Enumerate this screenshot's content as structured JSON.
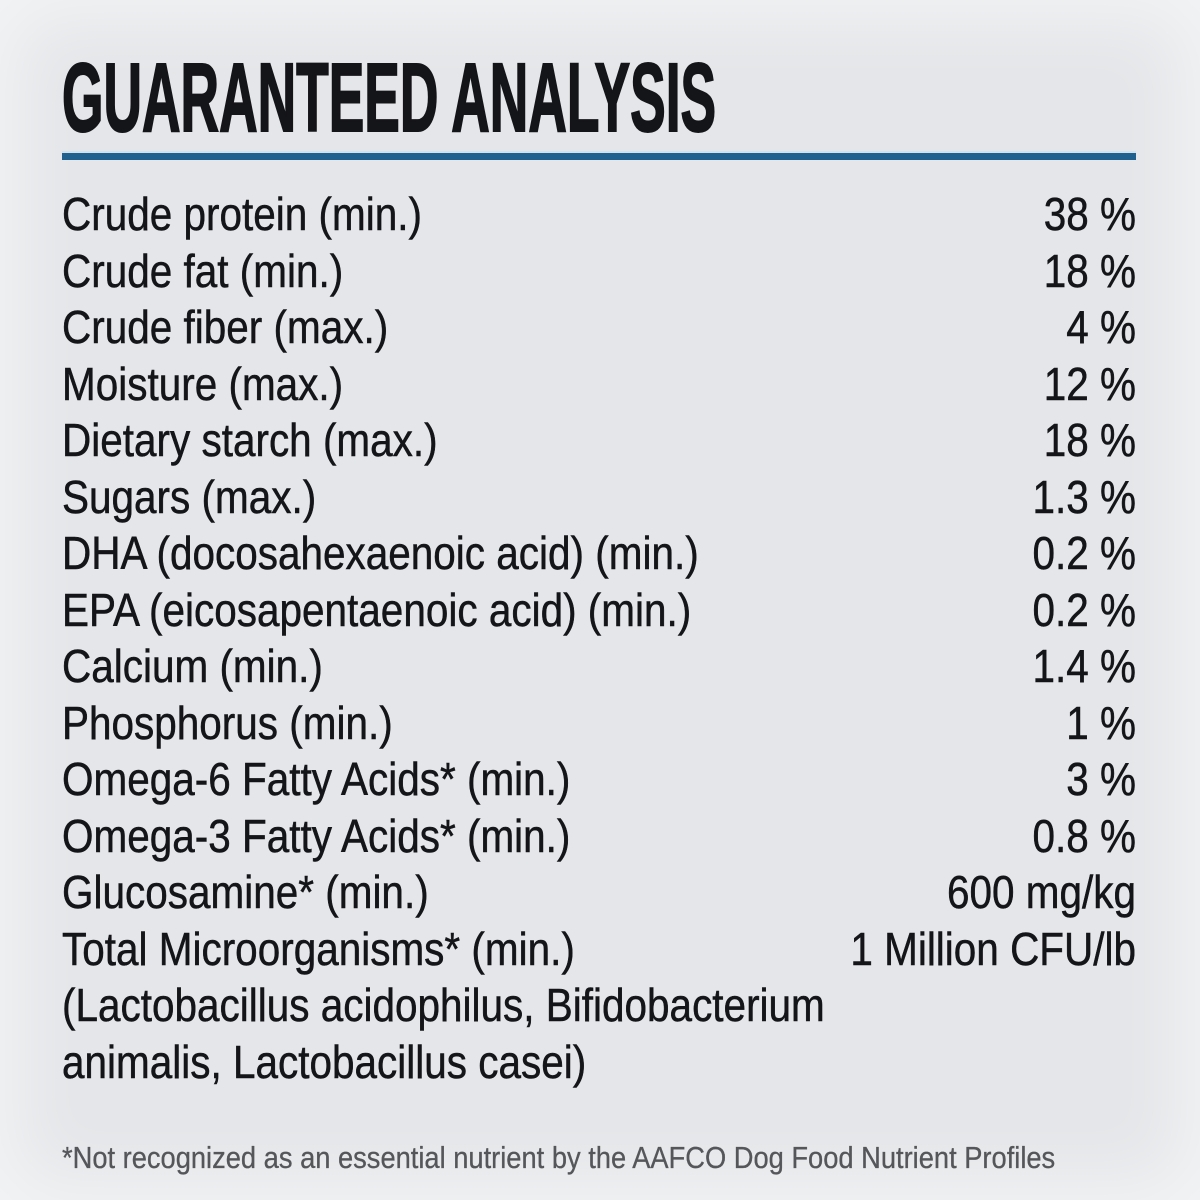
{
  "label": {
    "title": "GUARANTEED ANALYSIS",
    "rows": [
      {
        "name": "Crude protein (min.)",
        "value": "38 %"
      },
      {
        "name": "Crude fat (min.)",
        "value": "18 %"
      },
      {
        "name": "Crude fiber (max.)",
        "value": "4 %"
      },
      {
        "name": "Moisture (max.)",
        "value": "12 %"
      },
      {
        "name": "Dietary starch (max.)",
        "value": "18 %"
      },
      {
        "name": "Sugars (max.)",
        "value": "1.3 %"
      },
      {
        "name": "DHA (docosahexaenoic acid) (min.)",
        "value": "0.2 %"
      },
      {
        "name": "EPA (eicosapentaenoic acid) (min.)",
        "value": "0.2 %"
      },
      {
        "name": "Calcium (min.)",
        "value": "1.4 %"
      },
      {
        "name": "Phosphorus (min.)",
        "value": "1 %"
      },
      {
        "name": "Omega-6 Fatty Acids* (min.)",
        "value": "3 %"
      },
      {
        "name": "Omega-3 Fatty Acids* (min.)",
        "value": "0.8 %"
      },
      {
        "name": "Glucosamine* (min.)",
        "value": "600 mg/kg"
      },
      {
        "name": "Total Microorganisms* (min.)",
        "value": "1 Million CFU/lb"
      }
    ],
    "continuation": [
      "(Lactobacillus acidophilus, Bifidobacterium",
      "animalis, Lactobacillus casei)"
    ],
    "footnote": "*Not recognized as an essential nutrient by the AAFCO Dog Food Nutrient Profiles",
    "colors": {
      "background": "#e4e6e9",
      "text": "#141518",
      "accent_rule": "#1f608f",
      "accent_rule_highlight": "#cfe2ee",
      "footnote_text": "#55565a"
    }
  }
}
